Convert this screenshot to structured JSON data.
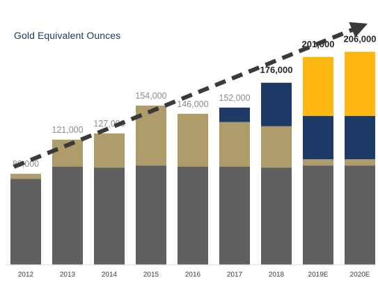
{
  "chart_data": {
    "type": "bar",
    "title": "Gold Equivalent Ounces",
    "xlabel": "",
    "ylabel": "",
    "ylim": [
      0,
      206000
    ],
    "categories": [
      "2012",
      "2013",
      "2014",
      "2015",
      "2016",
      "2017",
      "2018",
      "2019E",
      "2020E"
    ],
    "totals": [
      88000,
      121000,
      127000,
      154000,
      146000,
      152000,
      176000,
      201000,
      206000
    ],
    "total_labels": [
      "88,000",
      "121,000",
      "127,000",
      "154,000",
      "146,000",
      "152,000",
      "176,000",
      "201,000",
      "206,000"
    ],
    "total_label_emphasis": [
      false,
      false,
      false,
      false,
      false,
      false,
      true,
      true,
      true
    ],
    "series": [
      {
        "values": [
          83000,
          95000,
          94000,
          96000,
          95000,
          95000,
          94000,
          96000,
          96000
        ],
        "color": "#5f5f5f"
      },
      {
        "values": [
          5000,
          26000,
          33000,
          58000,
          51000,
          43000,
          40000,
          6000,
          6000
        ],
        "color": "#ae9d6b"
      },
      {
        "values": [
          0,
          0,
          0,
          0,
          0,
          14000,
          42000,
          42000,
          42000
        ],
        "color": "#1e3a66"
      },
      {
        "values": [
          0,
          0,
          0,
          0,
          0,
          0,
          0,
          57000,
          62000
        ],
        "color": "#ffb812"
      }
    ],
    "trend_arrow": {
      "style": "dashed",
      "color": "#3a3a3a"
    },
    "grid": false,
    "legend": "none"
  }
}
